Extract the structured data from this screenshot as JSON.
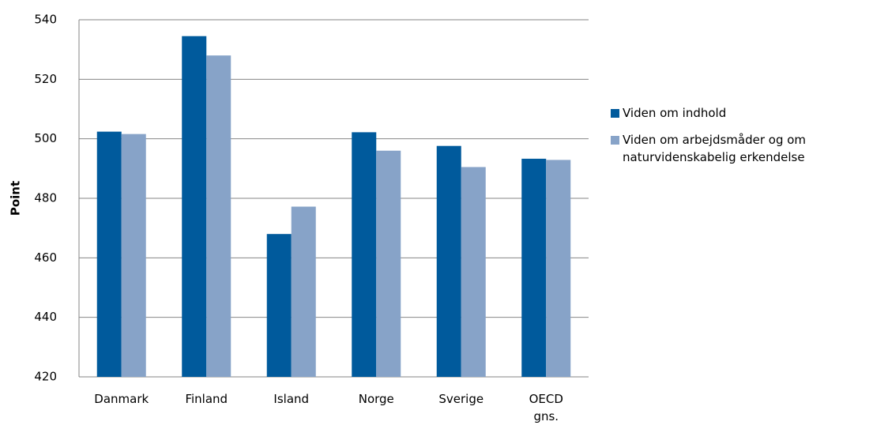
{
  "chart_data": {
    "type": "bar",
    "y_label": "Point",
    "categories": [
      "Danmark",
      "Finland",
      "Island",
      "Norge",
      "Sverige",
      "OECD gns."
    ],
    "series": [
      {
        "name": "Viden om indhold",
        "color": "#005a9c",
        "values": [
          502.4,
          534.5,
          468,
          502.2,
          497.6,
          493.3
        ]
      },
      {
        "name": "Viden om arbejdsmåder og om naturvidenskabelig erkendelse",
        "color": "#87a3c8",
        "values": [
          501.6,
          528,
          477.2,
          496,
          490.5,
          492.9
        ]
      }
    ],
    "ylim": [
      420,
      540
    ],
    "yticks": [
      420,
      440,
      460,
      480,
      500,
      520,
      540
    ],
    "grid": true,
    "legend": "right"
  }
}
